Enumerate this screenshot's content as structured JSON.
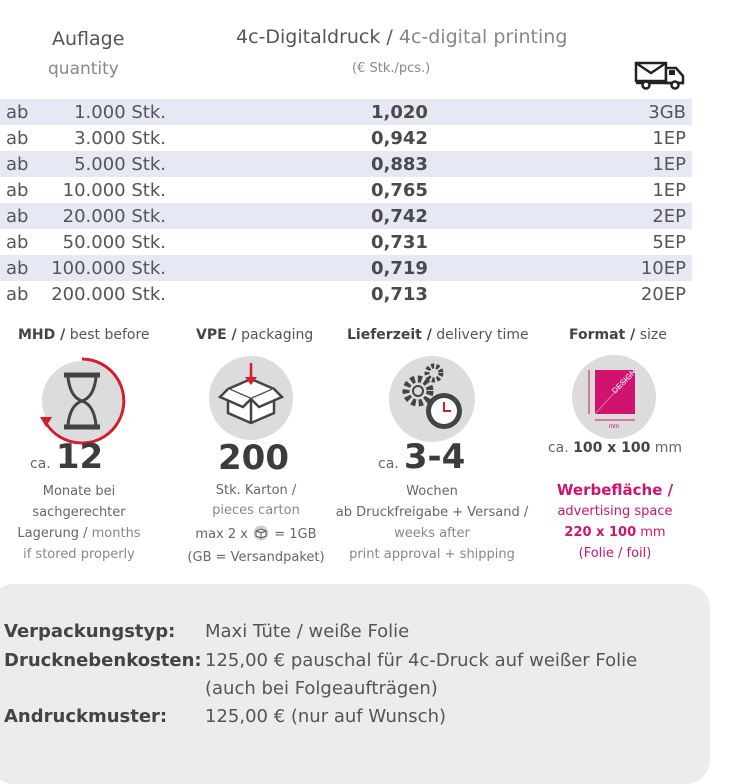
{
  "header": {
    "qty_de": "Auflage",
    "qty_en": "quantity",
    "print_de": "4c-Digitaldruck /",
    "print_en": "4c-digital printing",
    "unit": "(€ Stk./pcs.)",
    "ship_icon": "truck-envelope-icon"
  },
  "rows": [
    {
      "ab": "ab",
      "qty": "1.000 Stk.",
      "price": "1,020",
      "ship": "3GB"
    },
    {
      "ab": "ab",
      "qty": "3.000 Stk.",
      "price": "0,942",
      "ship": "1EP"
    },
    {
      "ab": "ab",
      "qty": "5.000 Stk.",
      "price": "0,883",
      "ship": "1EP"
    },
    {
      "ab": "ab",
      "qty": "10.000 Stk.",
      "price": "0,765",
      "ship": "1EP"
    },
    {
      "ab": "ab",
      "qty": "20.000 Stk.",
      "price": "0,742",
      "ship": "2EP"
    },
    {
      "ab": "ab",
      "qty": "50.000 Stk.",
      "price": "0,731",
      "ship": "5EP"
    },
    {
      "ab": "ab",
      "qty": "100.000 Stk.",
      "price": "0,719",
      "ship": "10EP"
    },
    {
      "ab": "ab",
      "qty": "200.000 Stk.",
      "price": "0,713",
      "ship": "20EP"
    }
  ],
  "mhd": {
    "head_de": "MHD /",
    "head_en": "best before",
    "prefix": "ca.",
    "value": "12",
    "l1": "Monate bei",
    "l2": "sachgerechter",
    "l3a": "Lagerung /",
    "l3b": "months",
    "l4": "if stored properly"
  },
  "vpe": {
    "head_de": "VPE /",
    "head_en": "packaging",
    "value": "200",
    "l1": "Stk. Karton /",
    "l2": "pieces carton",
    "l3a": "max 2 x",
    "l3b": "= 1GB",
    "l4": "(GB = Versandpaket)"
  },
  "lieferzeit": {
    "head_de": "Lieferzeit /",
    "head_en": "delivery time",
    "prefix": "ca.",
    "value": "3-4",
    "l1": "Wochen",
    "l2": "ab Druckfreigabe + Versand /",
    "l3": "weeks after",
    "l4": "print approval + shipping"
  },
  "format": {
    "head_de": "Format /",
    "head_en": "size",
    "icon_label": "DESIGN",
    "icon_unit": "mm",
    "size_prefix": "ca.",
    "size_value": "100 x 100",
    "size_unit": "mm",
    "w1": "Werbefläche /",
    "w2": "advertising space",
    "w3": "220 x 100",
    "w3_unit": "mm",
    "w4": "(Folie / foil)"
  },
  "details": {
    "type_label": "Verpackungstyp:",
    "type_value": "Maxi Tüte / weiße Folie",
    "cost_label": "Drucknebenkosten:",
    "cost_value1": "125,00 € pauschal für 4c-Druck auf weißer Folie",
    "cost_value2": "(auch bei Folgeaufträgen)",
    "proof_label": "Andruckmuster:",
    "proof_value": "125,00 € (nur auf Wunsch)"
  },
  "colors": {
    "accent": "#d0136e",
    "shade": "#e6e8f3",
    "box": "#ececea",
    "clock_ring": "#d21f2b"
  }
}
